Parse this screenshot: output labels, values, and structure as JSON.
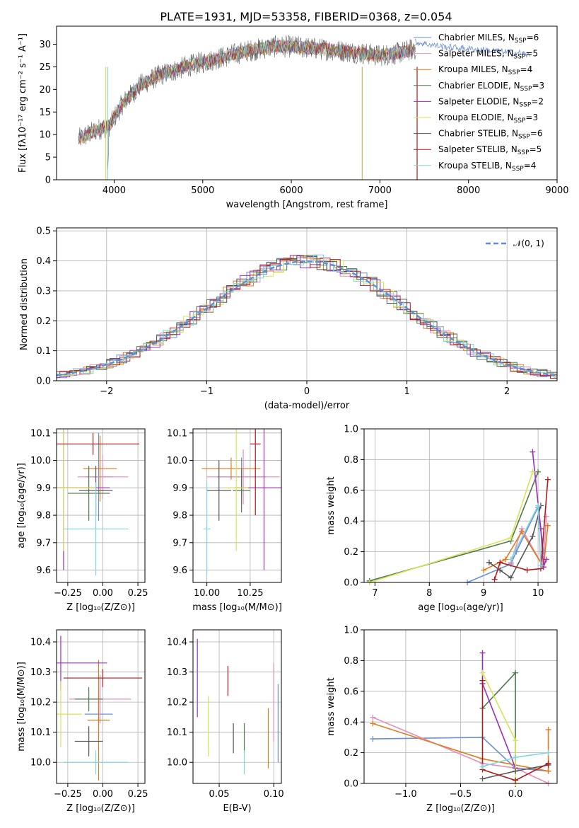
{
  "figure_title": "PLATE=1931, MJD=53358, FIBERID=0368, z=0.054",
  "model_colors": [
    "#6a8fd6",
    "#e58fb8",
    "#e07b20",
    "#4f7a4f",
    "#9a30b8",
    "#d8e455",
    "#555555",
    "#b01a1a",
    "#7fd6dc"
  ],
  "chart_data": [
    {
      "id": "spectrum",
      "type": "line",
      "xlabel": "wavelength [Angstrom, rest frame]",
      "ylabel": "Flux [fλ10⁻¹⁷ erg cm⁻² s⁻¹ A⁻¹]",
      "xlim": [
        3350,
        9000
      ],
      "ylim": [
        0,
        34
      ],
      "xticks": [
        4000,
        5000,
        6000,
        7000,
        8000,
        9000
      ],
      "yticks": [
        0,
        5,
        10,
        15,
        20,
        25,
        30
      ],
      "grid": false,
      "legend_position": "top-right",
      "series": [
        {
          "name": "Chabrier MILES, N_SSP=6",
          "x": [
            3600,
            3800,
            3950,
            4100,
            4300,
            4500,
            4800,
            5000,
            5200,
            5500,
            5800,
            6000,
            6300,
            6600,
            7000,
            7200,
            7400
          ],
          "y": [
            9,
            11,
            12,
            17,
            21,
            23,
            25,
            26,
            27,
            28.5,
            29.5,
            29.5,
            29,
            28.5,
            27.5,
            28,
            29
          ]
        },
        {
          "name": "Salpeter MILES, N_SSP=5"
        },
        {
          "name": "Kroupa MILES, N_SSP=4"
        },
        {
          "name": "Chabrier ELODIE, N_SSP=3"
        },
        {
          "name": "Salpeter ELODIE, N_SSP=2"
        },
        {
          "name": "Kroupa ELODIE, N_SSP=3"
        },
        {
          "name": "Chabrier STELIB, N_SSP=6"
        },
        {
          "name": "Salpeter STELIB, N_SSP=5"
        },
        {
          "name": "Kroupa STELIB, N_SSP=4"
        }
      ],
      "model_extension": {
        "x": [
          7400,
          7700,
          8000,
          8300,
          8600,
          8700
        ],
        "y": [
          30.5,
          29.5,
          29,
          28.5,
          28,
          27.5
        ]
      }
    },
    {
      "id": "residuals",
      "type": "histogram",
      "xlabel": "(data-model)/error",
      "ylabel": "Normed distribution",
      "xlim": [
        -2.5,
        2.5
      ],
      "ylim": [
        0,
        0.51
      ],
      "xticks": [
        -2,
        -1,
        0,
        1,
        2
      ],
      "yticks": [
        0.0,
        0.1,
        0.2,
        0.3,
        0.4,
        0.5
      ],
      "grid": true,
      "legend_position": "top-right",
      "legend_label": "𝒩(0, 1)",
      "gaussian": {
        "mean": 0,
        "sigma": 1
      }
    },
    {
      "id": "age-vs-Z",
      "type": "errorbar",
      "xlabel": "Z [log₁₀(Z/Z⊙)]",
      "ylabel": "age  [log₁₀(age/yr)]",
      "xlim": [
        -0.33,
        0.3
      ],
      "ylim": [
        9.555,
        10.115
      ],
      "xticks": [
        -0.25,
        0.0,
        0.25
      ],
      "xticklabels": [
        "−0.25",
        "0.00",
        "0.25"
      ],
      "yticks": [
        9.6,
        9.7,
        9.8,
        9.9,
        10.0,
        10.1
      ],
      "grid": true,
      "points": [
        {
          "x": -0.03,
          "xerr": 0.1,
          "y": 9.94,
          "yerr": 0.16
        },
        {
          "x": 0.0,
          "xerr": 0.18,
          "y": 9.94,
          "yerr": 0.08
        },
        {
          "x": -0.02,
          "xerr": 0.12,
          "y": 9.97,
          "yerr": 0.12
        },
        {
          "x": -0.1,
          "xerr": 0.15,
          "y": 9.88,
          "yerr": 0.1
        },
        {
          "x": -0.28,
          "xerr": 0.33,
          "y": 9.9,
          "yerr": 0.3
        },
        {
          "x": -0.28,
          "xerr": 0.23,
          "y": 9.9,
          "yerr": 0.23
        },
        {
          "x": -0.05,
          "xerr": 0.12,
          "y": 9.89,
          "yerr": 0.09
        },
        {
          "x": -0.07,
          "xerr": 0.33,
          "y": 10.06,
          "yerr": 0.04
        },
        {
          "x": -0.05,
          "xerr": 0.23,
          "y": 9.75,
          "yerr": 0.17
        }
      ]
    },
    {
      "id": "age-vs-mass",
      "type": "errorbar",
      "xlabel": "mass [log₁₀(M/M⊙)]",
      "ylabel": "",
      "xlim": [
        9.92,
        10.43
      ],
      "ylim": [
        9.555,
        10.115
      ],
      "xticks": [
        10.0,
        10.25
      ],
      "xticklabels": [
        "10.00",
        "10.25"
      ],
      "yticks": [
        9.6,
        9.7,
        9.8,
        9.9,
        10.0,
        10.1
      ],
      "grid": true,
      "points": [
        {
          "x": 10.2,
          "xerr": 0.14,
          "y": 9.94,
          "yerr": 0.07
        },
        {
          "x": 10.21,
          "xerr": 0.21,
          "y": 9.94,
          "yerr": 0.1
        },
        {
          "x": 10.14,
          "xerr": 0.17,
          "y": 9.97,
          "yerr": 0.04
        },
        {
          "x": 10.2,
          "xerr": 0.05,
          "y": 9.89,
          "yerr": 0.08
        },
        {
          "x": 10.33,
          "xerr": 0.17,
          "y": 9.9,
          "yerr": 0.3
        },
        {
          "x": 10.17,
          "xerr": 0.07,
          "y": 9.9,
          "yerr": 0.23
        },
        {
          "x": 10.07,
          "xerr": 0.07,
          "y": 9.89,
          "yerr": 0.11
        },
        {
          "x": 10.28,
          "xerr": 0.03,
          "y": 10.06,
          "yerr": 0.26
        },
        {
          "x": 10.0,
          "xerr": 0.02,
          "y": 9.75,
          "yerr": 0.17
        }
      ]
    },
    {
      "id": "weight-vs-age",
      "type": "line",
      "xlabel": "age  [log₁₀(age/yr)]",
      "ylabel": "mass weight",
      "xlim": [
        6.8,
        10.35
      ],
      "ylim": [
        0,
        1.0
      ],
      "xticks": [
        7,
        8,
        9,
        10
      ],
      "yticks": [
        0.0,
        0.2,
        0.4,
        0.6,
        0.8,
        1.0
      ],
      "grid": true,
      "series": [
        {
          "x": [
            8.7,
            9.5,
            9.6,
            10.0,
            10.1
          ],
          "y": [
            0.0,
            0.12,
            0.2,
            0.49,
            0.2
          ]
        },
        {
          "x": [
            9.5,
            9.7,
            10.1,
            10.15
          ],
          "y": [
            0.13,
            0.35,
            0.1,
            0.43
          ]
        },
        {
          "x": [
            9.0,
            9.4,
            9.7,
            10.1,
            10.18
          ],
          "y": [
            0.08,
            0.15,
            0.33,
            0.1,
            0.37
          ]
        },
        {
          "x": [
            6.9,
            9.5,
            10.0
          ],
          "y": [
            0.01,
            0.27,
            0.72
          ]
        },
        {
          "x": [
            9.9,
            10.05,
            10.1,
            10.15
          ],
          "y": [
            0.85,
            0.35,
            0.1,
            0.15
          ]
        },
        {
          "x": [
            6.9,
            9.5,
            9.9
          ],
          "y": [
            0.0,
            0.29,
            0.72
          ]
        },
        {
          "x": [
            9.1,
            9.3,
            9.5,
            9.9,
            10.05
          ],
          "y": [
            0.13,
            0.08,
            0.03,
            0.3,
            0.5
          ]
        },
        {
          "x": [
            9.2,
            9.3,
            9.8,
            10.05,
            10.18
          ],
          "y": [
            0.02,
            0.13,
            0.08,
            0.09,
            0.67
          ]
        },
        {
          "x": [
            9.5,
            10.0,
            10.05
          ],
          "y": [
            0.15,
            0.5,
            0.11
          ]
        }
      ]
    },
    {
      "id": "mass-vs-Z",
      "type": "errorbar",
      "xlabel": "Z [log₁₀(Z/Z⊙)]",
      "ylabel": "mass [log₁₀(M/M⊙)]",
      "xlim": [
        -0.33,
        0.3
      ],
      "ylim": [
        9.93,
        10.44
      ],
      "xticks": [
        -0.25,
        0.0,
        0.25
      ],
      "xticklabels": [
        "−0.25",
        "0.00",
        "0.25"
      ],
      "yticks": [
        10.0,
        10.1,
        10.2,
        10.3,
        10.4
      ],
      "grid": true,
      "points": [
        {
          "x": -0.03,
          "xerr": 0.1,
          "y": 10.16,
          "yerr": 0.08
        },
        {
          "x": -0.02,
          "xerr": 0.22,
          "y": 10.21,
          "yerr": 0.08
        },
        {
          "x": -0.03,
          "xerr": 0.08,
          "y": 10.14,
          "yerr": 0.2
        },
        {
          "x": -0.1,
          "xerr": 0.1,
          "y": 10.21,
          "yerr": 0.04
        },
        {
          "x": -0.3,
          "xerr": 0.33,
          "y": 10.33,
          "yerr": 0.09
        },
        {
          "x": -0.3,
          "xerr": 0.15,
          "y": 10.16,
          "yerr": 0.11
        },
        {
          "x": -0.1,
          "xerr": 0.1,
          "y": 10.07,
          "yerr": 0.05
        },
        {
          "x": 0.0,
          "xerr": 0.28,
          "y": 10.28,
          "yerr": 0.03
        },
        {
          "x": -0.05,
          "xerr": 0.23,
          "y": 10.0,
          "yerr": 0.04
        }
      ]
    },
    {
      "id": "mass-vs-EBV",
      "type": "errorbar",
      "xlabel": "E(B-V)",
      "ylabel": "",
      "xlim": [
        0.026,
        0.107
      ],
      "ylim": [
        9.93,
        10.44
      ],
      "xticks": [
        0.05,
        0.1
      ],
      "xticklabels": [
        "0.05",
        "0.10"
      ],
      "yticks": [
        10.0,
        10.1,
        10.2,
        10.3,
        10.4
      ],
      "grid": true,
      "points": [
        {
          "x": 0.104,
          "y": 10.13,
          "yerr": 0.13
        },
        {
          "x": 0.1,
          "y": 10.2,
          "yerr": 0.13
        },
        {
          "x": 0.095,
          "y": 10.08,
          "yerr": 0.1
        },
        {
          "x": 0.073,
          "y": 10.08,
          "yerr": 0.05
        },
        {
          "x": 0.03,
          "y": 10.28,
          "yerr": 0.13
        },
        {
          "x": 0.04,
          "y": 10.12,
          "yerr": 0.1
        },
        {
          "x": 0.063,
          "y": 10.08,
          "yerr": 0.05
        },
        {
          "x": 0.058,
          "y": 10.27,
          "yerr": 0.05
        },
        {
          "x": 0.073,
          "y": 10.0,
          "yerr": 0.04
        }
      ]
    },
    {
      "id": "weight-vs-Z",
      "type": "line",
      "xlabel": "Z [log₁₀(Z/Z⊙)]",
      "ylabel": "mass weight",
      "xlim": [
        -1.38,
        0.38
      ],
      "ylim": [
        0,
        1.0
      ],
      "xticks": [
        -1.0,
        -0.5,
        0.0
      ],
      "xticklabels": [
        "−1.0",
        "−0.5",
        "0.0"
      ],
      "yticks": [
        0.0,
        0.2,
        0.4,
        0.6,
        0.8,
        1.0
      ],
      "grid": true,
      "series": [
        {
          "x": [
            -1.3,
            -0.3,
            0.0,
            0.3
          ],
          "y": [
            0.29,
            0.3,
            0.1,
            0.08
          ]
        },
        {
          "x": [
            -1.3,
            -0.3,
            0.0,
            0.3
          ],
          "y": [
            0.43,
            0.13,
            0.1,
            0.0
          ]
        },
        {
          "x": [
            -1.3,
            -0.3,
            0.3,
            0.3
          ],
          "y": [
            0.39,
            0.16,
            0.08,
            0.35
          ]
        },
        {
          "x": [
            -0.3,
            0.0,
            0.0
          ],
          "y": [
            0.49,
            0.72,
            0.1
          ]
        },
        {
          "x": [
            -0.3,
            -0.3,
            0.0
          ],
          "y": [
            0.85,
            0.65,
            0.1
          ]
        },
        {
          "x": [
            -0.3,
            0.0,
            0.0
          ],
          "y": [
            0.72,
            0.28,
            0.0
          ]
        },
        {
          "x": [
            -0.3,
            0.0,
            0.3
          ],
          "y": [
            0.03,
            0.08,
            0.12
          ]
        },
        {
          "x": [
            -0.3,
            -0.3,
            0.0,
            0.3
          ],
          "y": [
            0.67,
            0.09,
            0.02,
            0.13
          ]
        },
        {
          "x": [
            -0.3,
            0.0,
            0.3
          ],
          "y": [
            0.11,
            0.17,
            0.2
          ]
        }
      ]
    }
  ]
}
